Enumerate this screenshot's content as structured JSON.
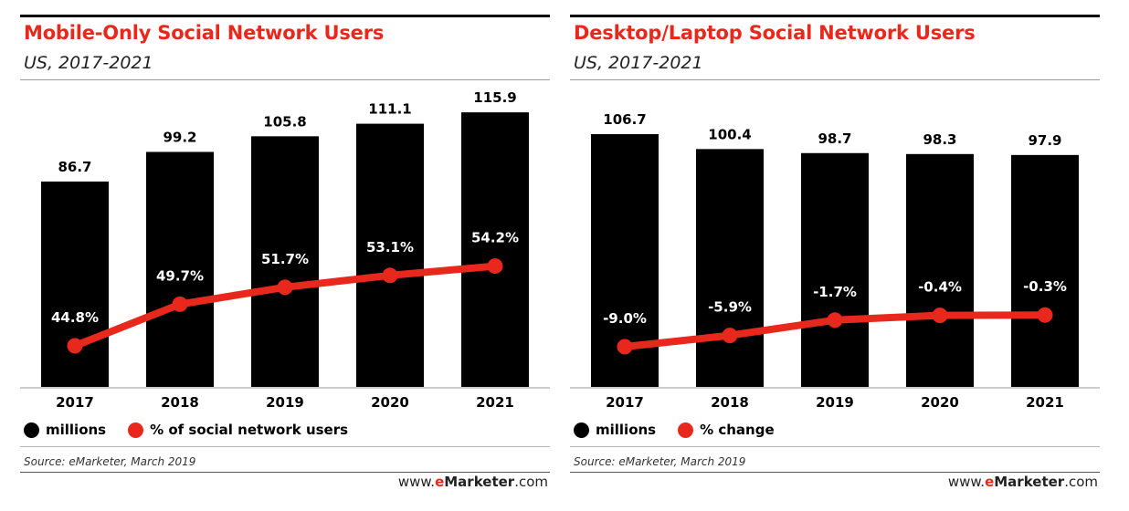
{
  "colors": {
    "bar": "#000000",
    "line": "#e8281c",
    "title": "#e8281c"
  },
  "footer": {
    "source": "Source: eMarketer, March 2019",
    "brand_pre": "www.",
    "brand_e": "e",
    "brand_name": "Marketer",
    "brand_post": ".com"
  },
  "chart_data": [
    {
      "type": "bar",
      "title": "Mobile-Only Social Network Users",
      "subtitle": "US, 2017-2021",
      "categories": [
        "2017",
        "2018",
        "2019",
        "2020",
        "2021"
      ],
      "series": [
        {
          "name": "millions",
          "type": "bar",
          "values": [
            86.7,
            99.2,
            105.8,
            111.1,
            115.9
          ],
          "labels": [
            "86.7",
            "99.2",
            "105.8",
            "111.1",
            "115.9"
          ]
        },
        {
          "name": "% of social network users",
          "type": "line",
          "values": [
            44.8,
            49.7,
            51.7,
            53.1,
            54.2
          ],
          "labels": [
            "44.8%",
            "49.7%",
            "51.7%",
            "53.1%",
            "54.2%"
          ]
        }
      ]
    },
    {
      "type": "bar",
      "title": "Desktop/Laptop Social Network Users",
      "subtitle": "US, 2017-2021",
      "categories": [
        "2017",
        "2018",
        "2019",
        "2020",
        "2021"
      ],
      "series": [
        {
          "name": "millions",
          "type": "bar",
          "values": [
            106.7,
            100.4,
            98.7,
            98.3,
            97.9
          ],
          "labels": [
            "106.7",
            "100.4",
            "98.7",
            "98.3",
            "97.9"
          ]
        },
        {
          "name": "% change",
          "type": "line",
          "values": [
            -9.0,
            -5.9,
            -1.7,
            -0.4,
            -0.3
          ],
          "labels": [
            "-9.0%",
            "-5.9%",
            "-1.7%",
            "-0.4%",
            "-0.3%"
          ]
        }
      ]
    }
  ]
}
